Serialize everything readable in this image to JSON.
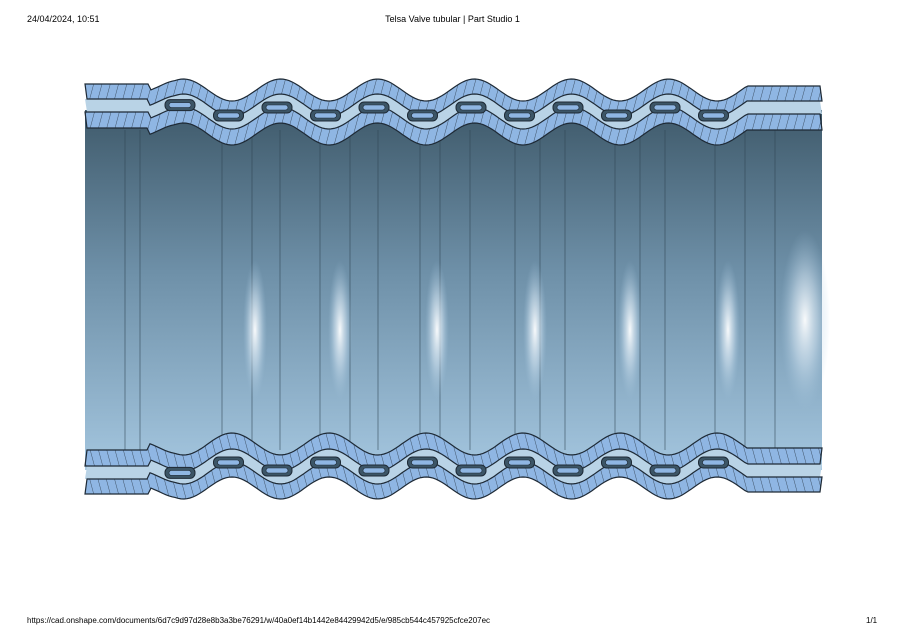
{
  "header": {
    "datetime": "24/04/2024, 10:51",
    "title": "Telsa Valve tubular | Part Studio 1"
  },
  "footer": {
    "url": "https://cad.onshape.com/documents/6d7c9d97d28e8b3a3be76291/w/40a0ef14b1442e84429942d5/e/985cb544c457925cfce207ec",
    "page": "1/1"
  },
  "view": {
    "content": "section view of tubular Tesla valve model",
    "colors": {
      "section_fill": "#8fb6e3",
      "outline": "#1e2a36",
      "bore_dark": "#45606f",
      "bore_light": "#9dc0da"
    }
  }
}
